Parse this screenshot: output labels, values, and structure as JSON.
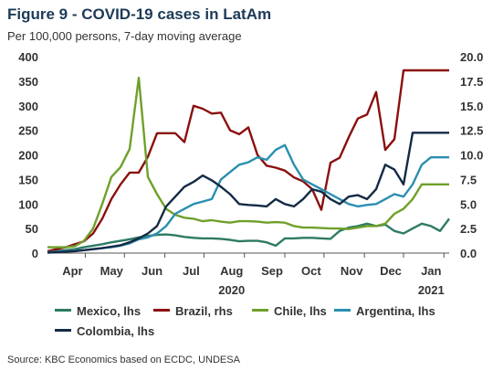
{
  "title": "Figure 9 - COVID-19 cases in LatAm",
  "subtitle": "Per 100,000 persons, 7-day moving average",
  "source": "Source: KBC Economics based on ECDC, UNDESA",
  "chart_data": {
    "type": "line",
    "x": [
      0,
      7,
      14,
      21,
      28,
      35,
      42,
      49,
      56,
      63,
      70,
      77,
      84,
      91,
      98,
      105,
      112,
      119,
      126,
      133,
      140,
      147,
      154,
      161,
      168,
      175,
      182,
      189,
      196,
      203,
      210,
      217,
      224,
      231,
      238,
      245,
      252,
      259,
      266,
      273,
      280,
      287,
      294,
      301,
      308
    ],
    "x_range": [
      0,
      308
    ],
    "x_ticks": [
      {
        "label": "Apr",
        "pos": 29
      },
      {
        "label": "May",
        "pos": 59
      },
      {
        "label": "Jun",
        "pos": 90
      },
      {
        "label": "Jul",
        "pos": 120
      },
      {
        "label": "Aug",
        "pos": 151
      },
      {
        "label": "Sep",
        "pos": 182
      },
      {
        "label": "Oct",
        "pos": 212
      },
      {
        "label": "Nov",
        "pos": 243
      },
      {
        "label": "Dec",
        "pos": 273
      },
      {
        "label": "Jan",
        "pos": 304
      }
    ],
    "year_labels": [
      {
        "label": "2020",
        "pos": 151
      },
      {
        "label": "2021",
        "pos": 304
      }
    ],
    "y_left": {
      "ylim": [
        0,
        400
      ],
      "ticks": [
        0,
        50,
        100,
        150,
        200,
        250,
        300,
        350,
        400
      ]
    },
    "y_right": {
      "ylim": [
        0,
        20
      ],
      "ticks": [
        "0.0",
        "2.5",
        "5.0",
        "7.5",
        "10.0",
        "12.5",
        "15.0",
        "17.5",
        "20.0"
      ]
    },
    "series": [
      {
        "name": "Mexico, lhs",
        "color": "#2d7a64",
        "axis": "left",
        "values": [
          2,
          4,
          6,
          8,
          12,
          15,
          18,
          22,
          25,
          28,
          32,
          35,
          37,
          38,
          36,
          33,
          31,
          30,
          30,
          29,
          27,
          24,
          25,
          25,
          22,
          15,
          30,
          30,
          31,
          31,
          30,
          29,
          45,
          52,
          55,
          60,
          55,
          58,
          45,
          40,
          50,
          60,
          55,
          45,
          70
        ]
      },
      {
        "name": "Brazil, rhs",
        "color": "#8b0f0f",
        "axis": "right",
        "values": [
          0.2,
          0.4,
          0.6,
          0.9,
          1.2,
          2.0,
          3.5,
          5.5,
          7.0,
          8.2,
          8.2,
          9.8,
          12.2,
          12.2,
          12.2,
          11.3,
          15.0,
          14.7,
          14.2,
          14.3,
          12.5,
          12.1,
          12.8,
          10.0,
          8.9,
          8.7,
          8.4,
          7.7,
          7.3,
          6.5,
          4.4,
          9.2,
          9.7,
          11.8,
          13.7,
          14.1,
          16.4,
          10.5,
          11.6,
          18.6,
          18.6,
          18.6,
          18.6,
          18.6,
          18.6
        ]
      },
      {
        "name": "Chile, lhs",
        "color": "#6fa02a",
        "axis": "left",
        "values": [
          12,
          12,
          12,
          14,
          25,
          50,
          100,
          155,
          175,
          212,
          357,
          155,
          120,
          90,
          78,
          72,
          70,
          65,
          67,
          64,
          62,
          65,
          65,
          64,
          62,
          63,
          62,
          55,
          52,
          52,
          51,
          50,
          50,
          49,
          52,
          55,
          55,
          60,
          80,
          90,
          110,
          140,
          140,
          140,
          140
        ]
      },
      {
        "name": "Argentina, lhs",
        "color": "#2a8fb0",
        "axis": "left",
        "values": [
          2,
          3,
          4,
          5,
          6,
          8,
          10,
          12,
          15,
          20,
          28,
          32,
          40,
          55,
          80,
          90,
          100,
          105,
          110,
          150,
          165,
          180,
          185,
          195,
          190,
          210,
          220,
          180,
          150,
          140,
          130,
          120,
          110,
          100,
          95,
          98,
          100,
          110,
          120,
          115,
          140,
          180,
          195,
          195,
          195
        ]
      },
      {
        "name": "Colombia, lhs",
        "color": "#142a44",
        "axis": "left",
        "values": [
          1,
          2,
          3,
          4,
          6,
          8,
          10,
          13,
          16,
          22,
          30,
          40,
          55,
          95,
          115,
          135,
          145,
          158,
          148,
          135,
          120,
          100,
          98,
          97,
          95,
          110,
          100,
          95,
          110,
          130,
          125,
          110,
          100,
          115,
          118,
          110,
          130,
          180,
          170,
          140,
          245,
          245,
          245,
          245,
          245
        ]
      }
    ]
  }
}
